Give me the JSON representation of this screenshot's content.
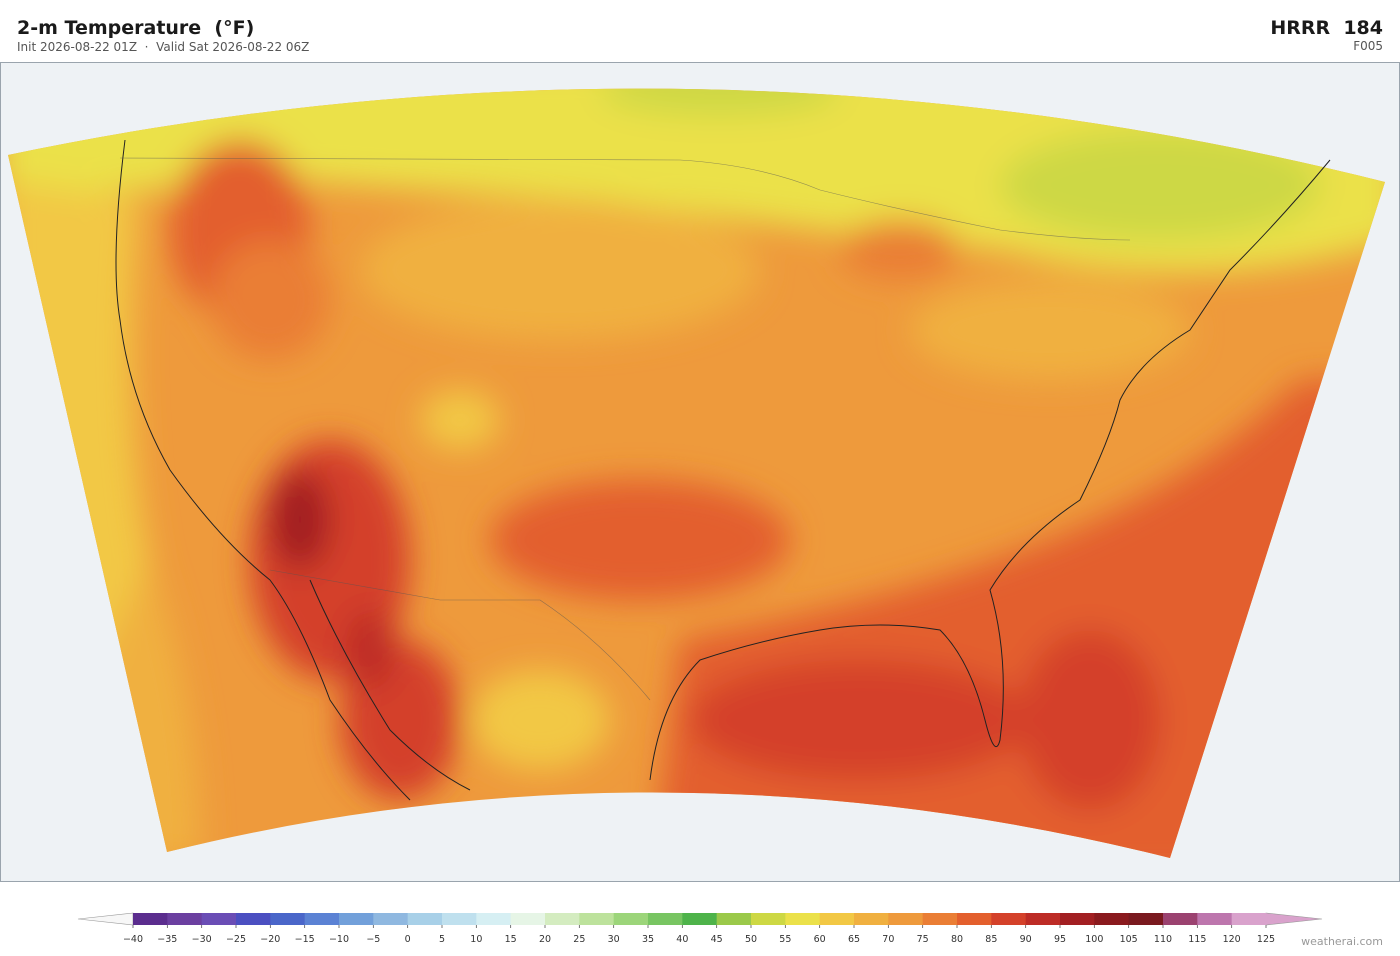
{
  "header": {
    "title": "2-m Temperature  (°F)",
    "subtitle": "Init 2026-08-22 01Z  ·  Valid Sat 2026-08-22 06Z",
    "model": "HRRR  184",
    "forecast_hour": "F005"
  },
  "colorbar": {
    "range": [
      -40,
      125
    ],
    "ticks": [
      {
        "value": -40,
        "label": "−40"
      },
      {
        "value": -35,
        "label": "−35"
      },
      {
        "value": -30,
        "label": "−30"
      },
      {
        "value": -25,
        "label": "−25"
      },
      {
        "value": -20,
        "label": "−20"
      },
      {
        "value": -15,
        "label": "−15"
      },
      {
        "value": -10,
        "label": "−10"
      },
      {
        "value": -5,
        "label": "−5"
      },
      0,
      5,
      10,
      15,
      20,
      25,
      30,
      35,
      40,
      45,
      50,
      55,
      60,
      65,
      70,
      75,
      80,
      85,
      90,
      95,
      100,
      105,
      110,
      115,
      120,
      125
    ],
    "colors": [
      "#5b2d8e",
      "#6b3fa0",
      "#6a4db5",
      "#4b4fc1",
      "#4a66c9",
      "#5b82d4",
      "#72a0da",
      "#8fb8e0",
      "#a8d0e8",
      "#bfe0ee",
      "#d6eff3",
      "#e6f5e6",
      "#d4ecc0",
      "#bde29c",
      "#9cd57a",
      "#78c562",
      "#4eb34a",
      "#9bc94a",
      "#cdd844",
      "#ebe14a",
      "#f2c845",
      "#f0b040",
      "#ee9a3c",
      "#ea7e35",
      "#e35f2d",
      "#d4412a",
      "#bd2c26",
      "#a21f22",
      "#8a1a1e",
      "#7a1a1f",
      "#9b4270",
      "#bd76ad",
      "#d9a2cc"
    ],
    "extend_colors": [
      "#f7f7f7",
      "#d9a2cc"
    ]
  },
  "footer": {
    "credit": "weatherai.com"
  }
}
